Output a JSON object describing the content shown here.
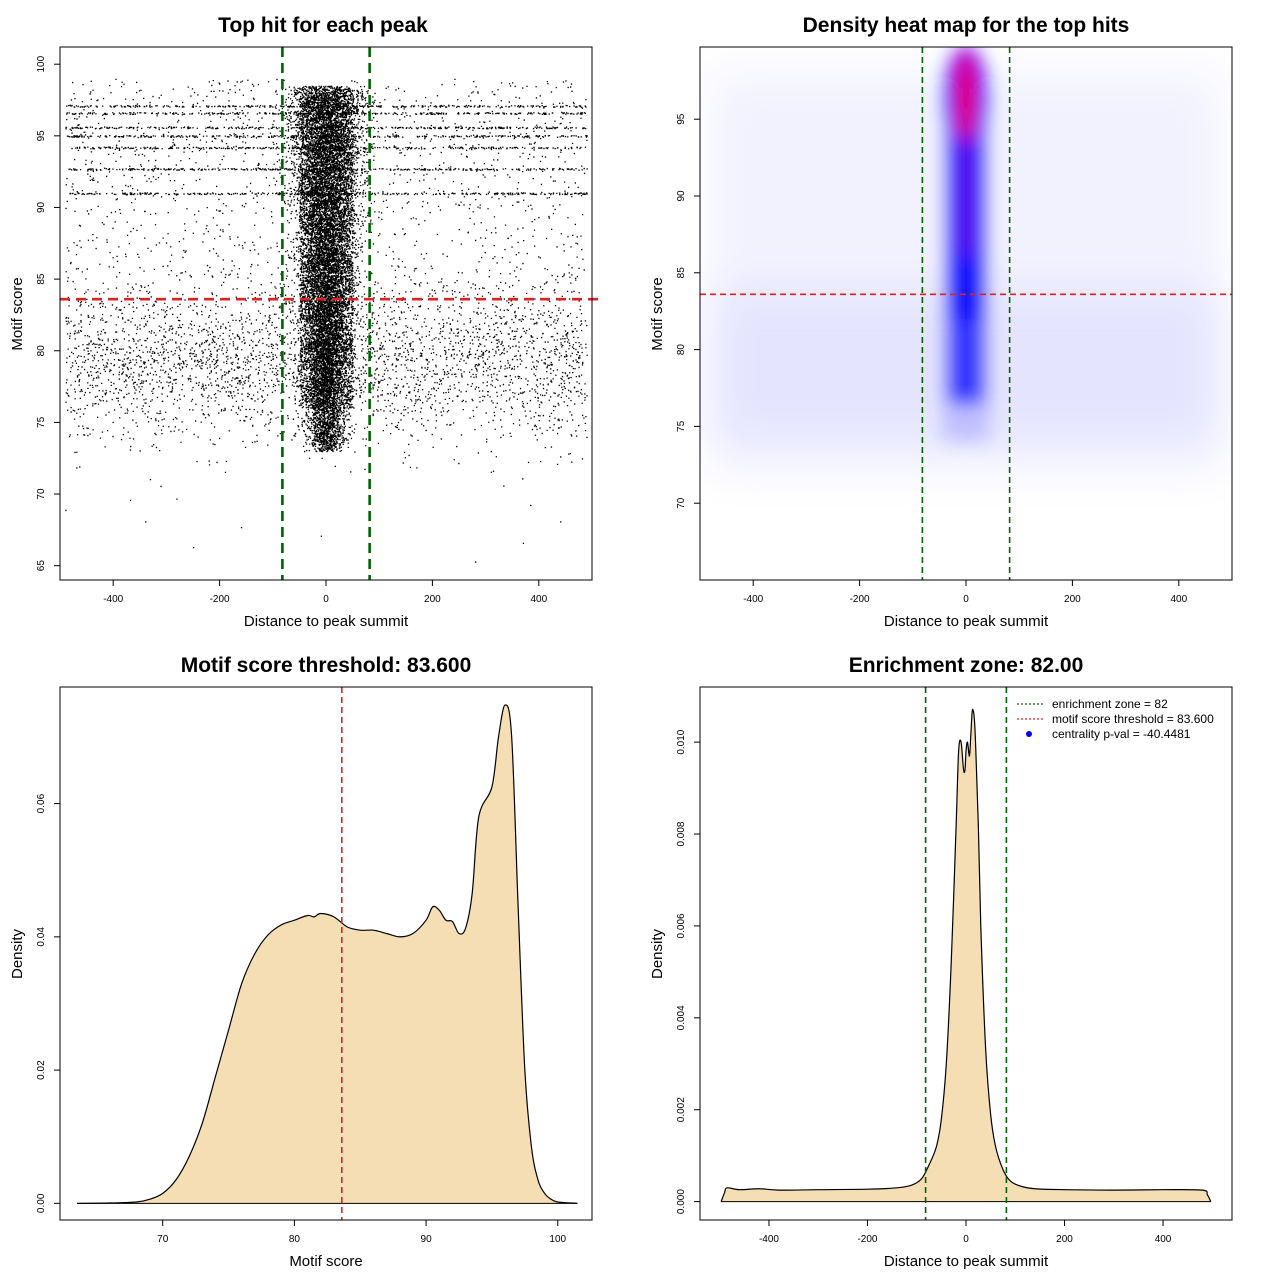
{
  "colors": {
    "fill": "#F5DEB3",
    "green_line": "#006400",
    "red_line": "#DD2222",
    "heat_blue": "#0000FF",
    "heat_red": "#FF0000"
  },
  "chart_data": [
    {
      "id": "scatter",
      "type": "scatter",
      "title": "Top hit for each peak",
      "xlabel": "Distance to peak summit",
      "ylabel": "Motif score",
      "xlim": [
        -500,
        500
      ],
      "ylim": [
        64,
        101.2
      ],
      "xticks": [
        -400,
        -200,
        0,
        200,
        400
      ],
      "yticks": [
        65,
        70,
        75,
        80,
        85,
        90,
        95,
        100
      ],
      "vlines": [
        -82,
        82
      ],
      "hline": 83.6,
      "grid": false,
      "legend": "none",
      "note": "dense point cloud; dense central column between -82 and 82; scattered background spread 69-99"
    },
    {
      "id": "heatmap",
      "type": "heatmap",
      "title": "Density heat map for the top hits",
      "xlabel": "Distance to peak summit",
      "ylabel": "Motif score",
      "xlim": [
        -500,
        500
      ],
      "ylim": [
        65,
        99.7
      ],
      "xticks": [
        -400,
        -200,
        0,
        200,
        400
      ],
      "yticks": [
        70,
        75,
        80,
        85,
        90,
        95
      ],
      "vlines": [
        -82,
        82
      ],
      "hline": 83.6,
      "hotspot": {
        "x": 0,
        "y": 96.5
      },
      "grid": false,
      "legend": "none"
    },
    {
      "id": "score_density",
      "type": "area",
      "title": "Motif score threshold: 83.600",
      "xlabel": "Motif score",
      "ylabel": "Density",
      "xlim": [
        62.2,
        102.6
      ],
      "ylim": [
        -0.0025,
        0.0775
      ],
      "xticks": [
        70,
        80,
        90,
        100
      ],
      "yticks": [
        0.0,
        0.02,
        0.04,
        0.06
      ],
      "ytick_labels": [
        "0.00",
        "0.02",
        "0.04",
        "0.06"
      ],
      "vline": 83.6,
      "grid": false,
      "legend": "none",
      "x": [
        63.5,
        66,
        68,
        69,
        70,
        71,
        72,
        73,
        74,
        75,
        76,
        77,
        78,
        79,
        80,
        81,
        81.5,
        82,
        83,
        84,
        85,
        86,
        87,
        88,
        89,
        90,
        90.5,
        91,
        91.5,
        92,
        92.5,
        93,
        93.5,
        94,
        95,
        95.5,
        96,
        96.5,
        97,
        97.5,
        98,
        98.5,
        99,
        99.5,
        100,
        101,
        101.5
      ],
      "y": [
        0.0,
        5e-05,
        0.0002,
        0.0006,
        0.0015,
        0.0035,
        0.007,
        0.012,
        0.019,
        0.026,
        0.033,
        0.0375,
        0.0403,
        0.0418,
        0.0425,
        0.0432,
        0.043,
        0.0435,
        0.043,
        0.0415,
        0.041,
        0.041,
        0.0405,
        0.04,
        0.0405,
        0.0425,
        0.0445,
        0.044,
        0.0425,
        0.0423,
        0.0405,
        0.0413,
        0.0465,
        0.058,
        0.0625,
        0.07,
        0.0748,
        0.07,
        0.044,
        0.02,
        0.0085,
        0.0035,
        0.0015,
        0.0006,
        0.0002,
        5e-05,
        0.0
      ]
    },
    {
      "id": "distance_density",
      "type": "area",
      "title": "Enrichment zone: 82.00",
      "xlabel": "Distance to peak summit",
      "ylabel": "Density",
      "xlim": [
        -540,
        540
      ],
      "ylim": [
        -0.0004,
        0.0112
      ],
      "xticks": [
        -400,
        -200,
        0,
        200,
        400
      ],
      "yticks": [
        0.0,
        0.002,
        0.004,
        0.006,
        0.008,
        0.01
      ],
      "ytick_labels": [
        "0.000",
        "0.002",
        "0.004",
        "0.006",
        "0.008",
        "0.010"
      ],
      "vlines": [
        -82,
        82
      ],
      "grid": false,
      "legend": "top-right",
      "x": [
        -497,
        -490,
        -485,
        -460,
        -420,
        -380,
        -300,
        -200,
        -140,
        -110,
        -90,
        -75,
        -60,
        -50,
        -40,
        -30,
        -20,
        -15,
        -10,
        -5,
        -2,
        0,
        3,
        7,
        10,
        13,
        17,
        20,
        25,
        30,
        40,
        50,
        60,
        75,
        90,
        110,
        140,
        200,
        300,
        400,
        480,
        490,
        497
      ],
      "y": [
        0.0,
        0.0002,
        0.0003,
        0.00026,
        0.00028,
        0.00025,
        0.00026,
        0.00027,
        0.0003,
        0.00036,
        0.0005,
        0.0008,
        0.0012,
        0.0018,
        0.003,
        0.0052,
        0.0082,
        0.0098,
        0.01,
        0.0094,
        0.0094,
        0.0098,
        0.01,
        0.0097,
        0.0102,
        0.0107,
        0.0105,
        0.0098,
        0.0082,
        0.006,
        0.0033,
        0.0019,
        0.0012,
        0.0007,
        0.00045,
        0.00034,
        0.00028,
        0.00026,
        0.00025,
        0.00026,
        0.00025,
        0.00015,
        0.0
      ],
      "legend_entries": [
        {
          "label": "enrichment zone = 82",
          "style": "dotted-line",
          "color": "#006400"
        },
        {
          "label": "motif score threshold = 83.600",
          "style": "dotted-line",
          "color": "#DD2222"
        },
        {
          "label": "centrality p-val = -40.4481",
          "style": "dot",
          "color": "#0000FF"
        }
      ]
    }
  ]
}
